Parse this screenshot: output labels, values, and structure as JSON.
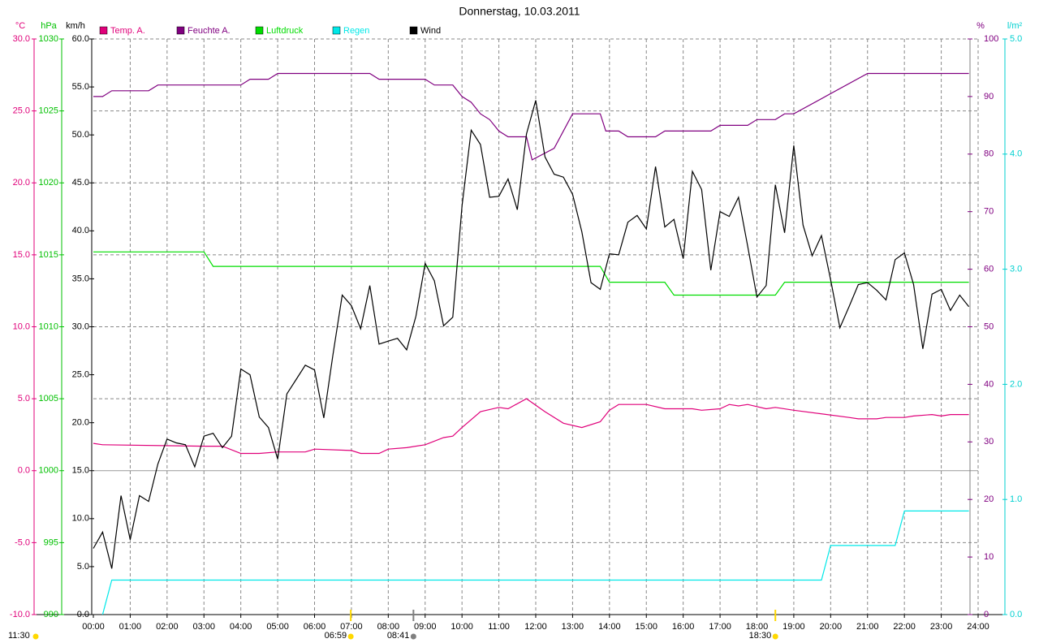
{
  "chart_data": {
    "type": "line",
    "title": "Donnerstag, 10.03.2011",
    "grid": true,
    "xlim": [
      0,
      24
    ],
    "xticks": [
      {
        "value": 0,
        "label": "00:00"
      },
      {
        "value": 1,
        "label": "01:00"
      },
      {
        "value": 2,
        "label": "02:00"
      },
      {
        "value": 3,
        "label": "03:00"
      },
      {
        "value": 4,
        "label": "04:00"
      },
      {
        "value": 5,
        "label": "05:00"
      },
      {
        "value": 6,
        "label": "06:00"
      },
      {
        "value": 7,
        "label": "07:00"
      },
      {
        "value": 8,
        "label": "08:00"
      },
      {
        "value": 9,
        "label": "09:00"
      },
      {
        "value": 10,
        "label": "10:00"
      },
      {
        "value": 11,
        "label": "11:00"
      },
      {
        "value": 12,
        "label": "12:00"
      },
      {
        "value": 13,
        "label": "13:00"
      },
      {
        "value": 14,
        "label": "14:00"
      },
      {
        "value": 15,
        "label": "15:00"
      },
      {
        "value": 16,
        "label": "16:00"
      },
      {
        "value": 17,
        "label": "17:00"
      },
      {
        "value": 18,
        "label": "18:00"
      },
      {
        "value": 19,
        "label": "19:00"
      },
      {
        "value": 20,
        "label": "20:00"
      },
      {
        "value": 21,
        "label": "21:00"
      },
      {
        "value": 22,
        "label": "22:00"
      },
      {
        "value": 23,
        "label": "23:00"
      },
      {
        "value": 24,
        "label": "24:00"
      }
    ],
    "y_axes": [
      {
        "label": "°C",
        "color": "#e0007a",
        "lim": [
          -10,
          30
        ],
        "ticks": [
          {
            "value": -10,
            "label": "-10.0"
          },
          {
            "value": -5,
            "label": "-5.0"
          },
          {
            "value": 0,
            "label": "0.0"
          },
          {
            "value": 5,
            "label": "5.0"
          },
          {
            "value": 10,
            "label": "10.0"
          },
          {
            "value": 15,
            "label": "15.0"
          },
          {
            "value": 20,
            "label": "20.0"
          },
          {
            "value": 25,
            "label": "25.0"
          },
          {
            "value": 30,
            "label": "30.0"
          }
        ]
      },
      {
        "label": "hPa",
        "color": "#00c000",
        "lim": [
          990,
          1030
        ],
        "ticks": [
          990,
          995,
          1000,
          1005,
          1010,
          1015,
          1020,
          1025,
          1030
        ]
      },
      {
        "label": "km/h",
        "color": "#000000",
        "lim": [
          0,
          60
        ],
        "ticks": [
          {
            "value": 0,
            "label": "0.0"
          },
          {
            "value": 5,
            "label": "5.0"
          },
          {
            "value": 10,
            "label": "10.0"
          },
          {
            "value": 15,
            "label": "15.0"
          },
          {
            "value": 20,
            "label": "20.0"
          },
          {
            "value": 25,
            "label": "25.0"
          },
          {
            "value": 30,
            "label": "30.0"
          },
          {
            "value": 35,
            "label": "35.0"
          },
          {
            "value": 40,
            "label": "40.0"
          },
          {
            "value": 45,
            "label": "45.0"
          },
          {
            "value": 50,
            "label": "50.0"
          },
          {
            "value": 55,
            "label": "55.0"
          },
          {
            "value": 60,
            "label": "60.0"
          }
        ]
      },
      {
        "label": "%",
        "color": "#800080",
        "lim": [
          0,
          100
        ],
        "ticks": [
          0,
          10,
          20,
          30,
          40,
          50,
          60,
          70,
          80,
          90,
          100
        ]
      },
      {
        "label": "l/m²",
        "color": "#00d0d0",
        "lim": [
          0,
          5
        ],
        "ticks": [
          {
            "value": 0,
            "label": "0.0"
          },
          {
            "value": 1,
            "label": "1.0"
          },
          {
            "value": 2,
            "label": "2.0"
          },
          {
            "value": 3,
            "label": "3.0"
          },
          {
            "value": 4,
            "label": "4.0"
          },
          {
            "value": 5,
            "label": "5.0"
          }
        ]
      }
    ],
    "series": [
      {
        "name": "Temp. A.",
        "color": "#e0007a",
        "axis": "°C",
        "x": [
          0,
          0.25,
          3,
          3.5,
          4,
          4.5,
          5,
          5.75,
          6,
          7,
          7.25,
          7.75,
          8,
          8.5,
          9,
          9.5,
          9.75,
          10,
          10.5,
          11,
          11.25,
          11.75,
          12.25,
          12.75,
          13.25,
          13.75,
          14,
          14.25,
          15,
          15.5,
          16.25,
          16.5,
          17,
          17.25,
          17.5,
          17.75,
          18.25,
          18.5,
          19,
          20.5,
          20.75,
          21.25,
          21.5,
          22,
          22.25,
          22.75,
          23,
          23.25,
          23.75
        ],
        "values": [
          1.9,
          1.8,
          1.7,
          1.7,
          1.2,
          1.2,
          1.3,
          1.3,
          1.5,
          1.4,
          1.2,
          1.2,
          1.5,
          1.6,
          1.8,
          2.3,
          2.4,
          3.0,
          4.1,
          4.4,
          4.3,
          5.0,
          4.1,
          3.3,
          3.0,
          3.4,
          4.2,
          4.6,
          4.6,
          4.3,
          4.3,
          4.2,
          4.3,
          4.6,
          4.5,
          4.6,
          4.3,
          4.4,
          4.2,
          3.7,
          3.6,
          3.6,
          3.7,
          3.7,
          3.8,
          3.9,
          3.8,
          3.9,
          3.9
        ]
      },
      {
        "name": "Feuchte A.",
        "color": "#800080",
        "axis": "%",
        "x": [
          0,
          0.25,
          0.5,
          1.5,
          1.75,
          4,
          4.25,
          4.75,
          5,
          7.5,
          7.75,
          9,
          9.25,
          9.75,
          10,
          10.25,
          10.5,
          10.75,
          11,
          11.25,
          11.75,
          11.9,
          12.5,
          13,
          13.75,
          13.9,
          14.25,
          14.5,
          15.25,
          15.5,
          16.75,
          17,
          17.75,
          18,
          18.5,
          18.75,
          19,
          21,
          23.75
        ],
        "values": [
          90,
          90,
          91,
          91,
          92,
          92,
          93,
          93,
          94,
          94,
          93,
          93,
          92,
          92,
          90,
          89,
          87,
          86,
          84,
          83,
          83,
          79,
          81,
          87,
          87,
          84,
          84,
          83,
          83,
          84,
          84,
          85,
          85,
          86,
          86,
          87,
          87,
          94,
          94
        ]
      },
      {
        "name": "Luftdruck",
        "color": "#00dd00",
        "axis": "hPa",
        "x": [
          0,
          3,
          3.25,
          13.75,
          14,
          15.5,
          15.75,
          18.5,
          18.75,
          23.75
        ],
        "values": [
          1015.2,
          1015.2,
          1014.2,
          1014.2,
          1013.1,
          1013.1,
          1012.2,
          1012.2,
          1013.1,
          1013.1
        ]
      },
      {
        "name": "Regen",
        "color": "#00e8e8",
        "axis": "l/m²",
        "x": [
          0.25,
          0.5,
          19.75,
          20,
          21.75,
          22,
          23.75
        ],
        "values": [
          0,
          0.3,
          0.3,
          0.6,
          0.6,
          0.9,
          0.9
        ]
      },
      {
        "name": "Wind",
        "color": "#000000",
        "axis": "km/h",
        "x": [
          0,
          0.25,
          0.5,
          0.75,
          1,
          1.25,
          1.5,
          1.75,
          2,
          2.25,
          2.5,
          2.75,
          3,
          3.25,
          3.5,
          3.75,
          4,
          4.25,
          4.5,
          4.75,
          5,
          5.25,
          5.5,
          5.75,
          6,
          6.25,
          6.5,
          6.75,
          7,
          7.25,
          7.5,
          7.75,
          8,
          8.25,
          8.5,
          8.75,
          9,
          9.25,
          9.5,
          9.75,
          10,
          10.25,
          10.5,
          10.75,
          11,
          11.25,
          11.5,
          11.75,
          12,
          12.25,
          12.5,
          12.75,
          13,
          13.25,
          13.5,
          13.75,
          14,
          14.25,
          14.5,
          14.75,
          15,
          15.25,
          15.5,
          15.75,
          16,
          16.25,
          16.5,
          16.75,
          17,
          17.25,
          17.5,
          17.75,
          18,
          18.25,
          18.5,
          18.75,
          19,
          19.25,
          19.5,
          19.75,
          20,
          20.25,
          20.5,
          20.75,
          21,
          21.25,
          21.5,
          21.75,
          22,
          22.25,
          22.5,
          22.75,
          23,
          23.25,
          23.5,
          23.75
        ],
        "values": [
          6.9,
          8.6,
          4.8,
          12.4,
          7.8,
          12.4,
          11.8,
          15.7,
          18.3,
          17.9,
          17.7,
          15.4,
          18.6,
          18.9,
          17.4,
          18.6,
          25.6,
          25.0,
          20.6,
          19.5,
          16.2,
          23.0,
          24.5,
          26.0,
          25.5,
          20.5,
          27.1,
          33.3,
          32.2,
          29.8,
          34.3,
          28.2,
          28.5,
          28.8,
          27.6,
          31.1,
          36.6,
          34.8,
          30.1,
          31.0,
          42.6,
          50.5,
          49.0,
          43.5,
          43.6,
          45.4,
          42.2,
          50.1,
          53.6,
          47.7,
          45.9,
          45.6,
          43.8,
          39.9,
          34.6,
          33.9,
          37.6,
          37.5,
          40.9,
          41.6,
          40.2,
          46.7,
          40.4,
          41.2,
          37.1,
          46.2,
          44.3,
          35.9,
          42.0,
          41.5,
          43.5,
          38.4,
          33.1,
          34.3,
          44.8,
          39.8,
          48.9,
          40.6,
          37.4,
          39.5,
          34.9,
          29.9,
          32.1,
          34.4,
          34.6,
          33.8,
          32.8,
          37.0,
          37.7,
          34.4,
          27.7,
          33.4,
          33.9,
          31.7,
          33.3,
          32.1
        ]
      }
    ],
    "annotations": [
      {
        "text": "11:30"
      },
      {
        "text": "06:59",
        "x": 6.983,
        "color": "#ffd800"
      },
      {
        "text": "08:41",
        "x": 8.683,
        "color": "#808080"
      },
      {
        "text": "18:30",
        "x": 18.5,
        "color": "#ffd800"
      }
    ]
  }
}
